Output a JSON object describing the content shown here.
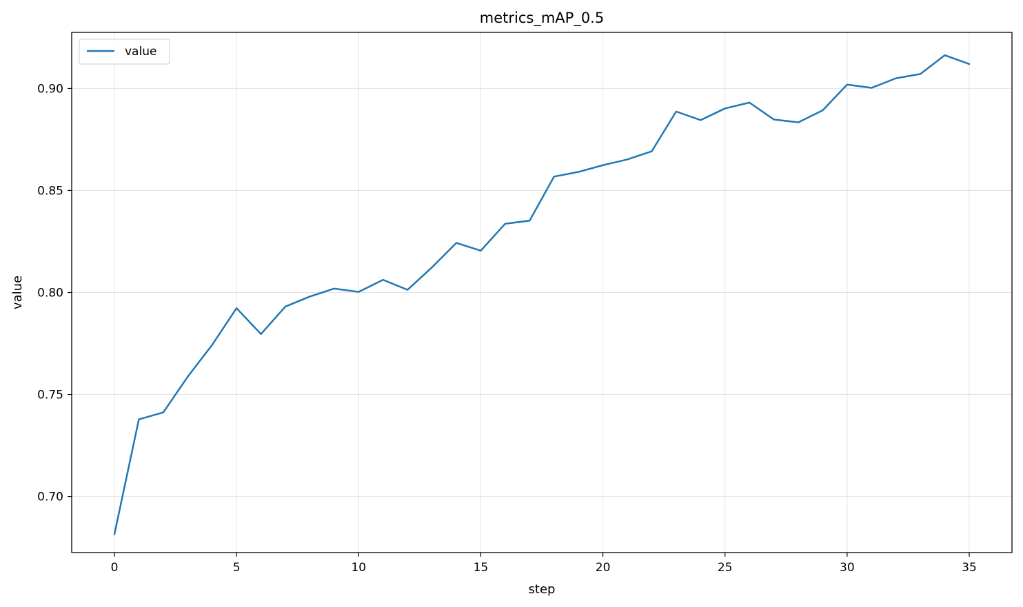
{
  "chart_data": {
    "type": "line",
    "title": "metrics_mAP_0.5",
    "xlabel": "step",
    "ylabel": "value",
    "xlim": [
      -1.75,
      36.75
    ],
    "ylim": [
      0.6725,
      0.9275
    ],
    "x_ticks": [
      0,
      5,
      10,
      15,
      20,
      25,
      30,
      35
    ],
    "x_tick_labels": [
      "0",
      "5",
      "10",
      "15",
      "20",
      "25",
      "30",
      "35"
    ],
    "y_ticks": [
      0.7,
      0.75,
      0.8,
      0.85,
      0.9
    ],
    "y_tick_labels": [
      "0.70",
      "0.75",
      "0.80",
      "0.85",
      "0.90"
    ],
    "grid": true,
    "legend_position": "top-left",
    "series": [
      {
        "name": "value",
        "color": "#1f77b4",
        "x": [
          0,
          1,
          2,
          3,
          4,
          5,
          6,
          7,
          8,
          9,
          10,
          11,
          12,
          13,
          14,
          15,
          16,
          17,
          18,
          19,
          20,
          21,
          22,
          23,
          24,
          25,
          26,
          27,
          28,
          29,
          30,
          31,
          32,
          33,
          34,
          35
        ],
        "y": [
          0.6815,
          0.7378,
          0.7412,
          0.7587,
          0.7743,
          0.7923,
          0.7796,
          0.7931,
          0.798,
          0.8019,
          0.8003,
          0.8062,
          0.8013,
          0.8123,
          0.8243,
          0.8205,
          0.8337,
          0.8352,
          0.8568,
          0.8591,
          0.8624,
          0.8652,
          0.8692,
          0.8887,
          0.8845,
          0.8902,
          0.8931,
          0.8848,
          0.8834,
          0.8893,
          0.9019,
          0.9003,
          0.905,
          0.9071,
          0.9163,
          0.912
        ]
      }
    ]
  }
}
